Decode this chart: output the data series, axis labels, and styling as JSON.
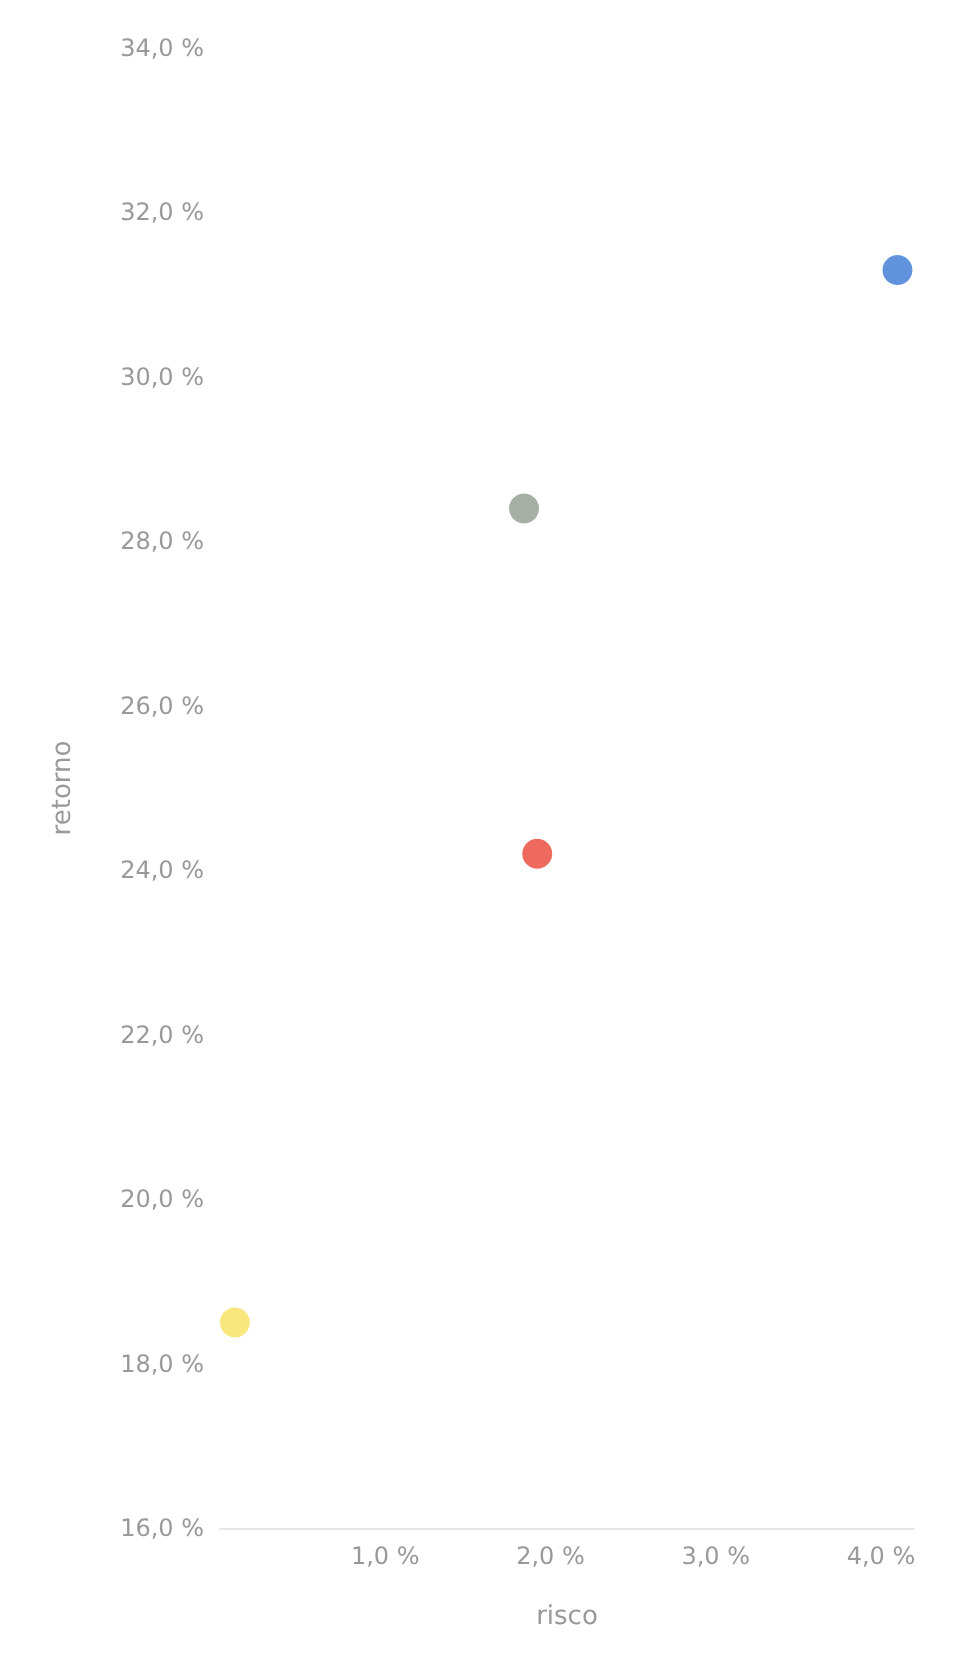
{
  "chart_data": {
    "type": "scatter",
    "xlabel": "risco",
    "ylabel": "retorno",
    "x": [
      4.1,
      1.84,
      1.92,
      0.09
    ],
    "values": [
      31.3,
      28.4,
      24.2,
      18.5
    ],
    "colors": [
      "#3a78d4",
      "#8e9b8c",
      "#ea4336",
      "#f5e15c"
    ],
    "xlim": [
      0,
      4.2
    ],
    "xticks": [
      {
        "value": 1,
        "label": "1,0 %"
      },
      {
        "value": 2,
        "label": "2,0 %"
      },
      {
        "value": 3,
        "label": "3,0 %"
      },
      {
        "value": 4,
        "label": "4,0 %"
      }
    ],
    "ylim": [
      16,
      34
    ],
    "yticks": [
      {
        "value": 16,
        "label": "16,0 %"
      },
      {
        "value": 18,
        "label": "18,0 %"
      },
      {
        "value": 20,
        "label": "20,0 %"
      },
      {
        "value": 22,
        "label": "22,0 %"
      },
      {
        "value": 24,
        "label": "24,0 %"
      },
      {
        "value": 26,
        "label": "26,0 %"
      },
      {
        "value": 28,
        "label": "28,0 %"
      },
      {
        "value": 30,
        "label": "30,0 %"
      },
      {
        "value": 32,
        "label": "32,0 %"
      },
      {
        "value": 34,
        "label": "34,0 %"
      }
    ],
    "grid": false,
    "marker": "circle"
  }
}
